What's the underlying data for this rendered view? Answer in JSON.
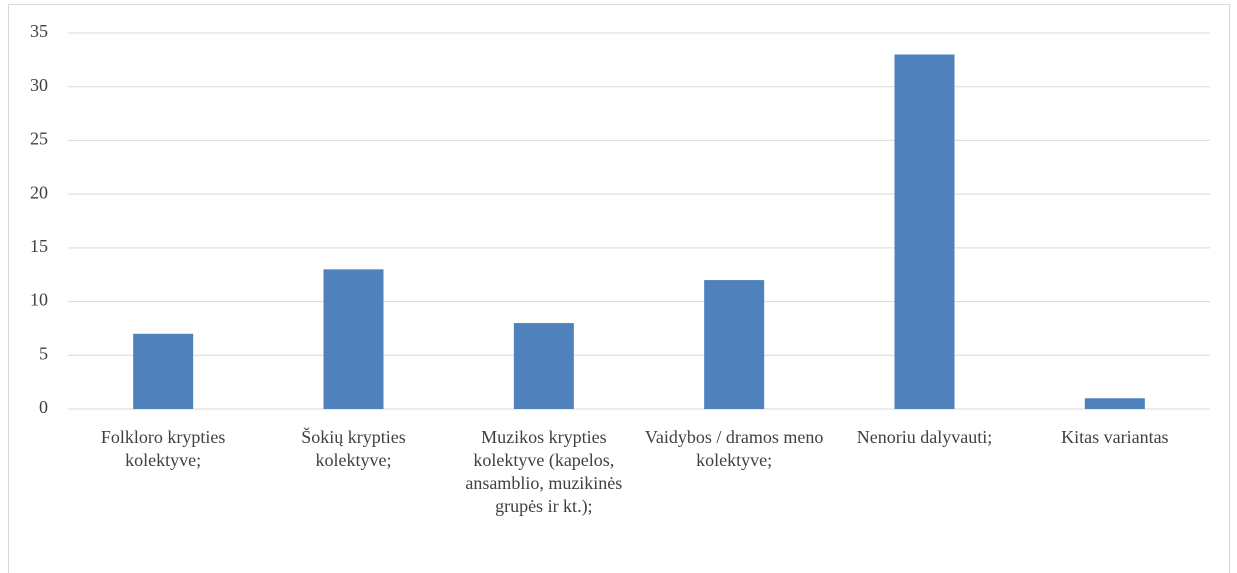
{
  "chart_data": {
    "type": "bar",
    "categories": [
      "Folkloro krypties kolektyve;",
      "Šokių krypties kolektyve;",
      "Muzikos krypties kolektyve (kapelos, ansamblio, muzikinės grupės ir kt.);",
      "Vaidybos / dramos meno kolektyve;",
      "Nenoriu dalyvauti;",
      "Kitas variantas"
    ],
    "values": [
      7,
      13,
      8,
      12,
      33,
      1
    ],
    "color": "#4f81bd",
    "ylim": [
      0,
      35
    ],
    "yticks": [
      0,
      5,
      10,
      15,
      20,
      25,
      30,
      35
    ],
    "grid": true
  }
}
